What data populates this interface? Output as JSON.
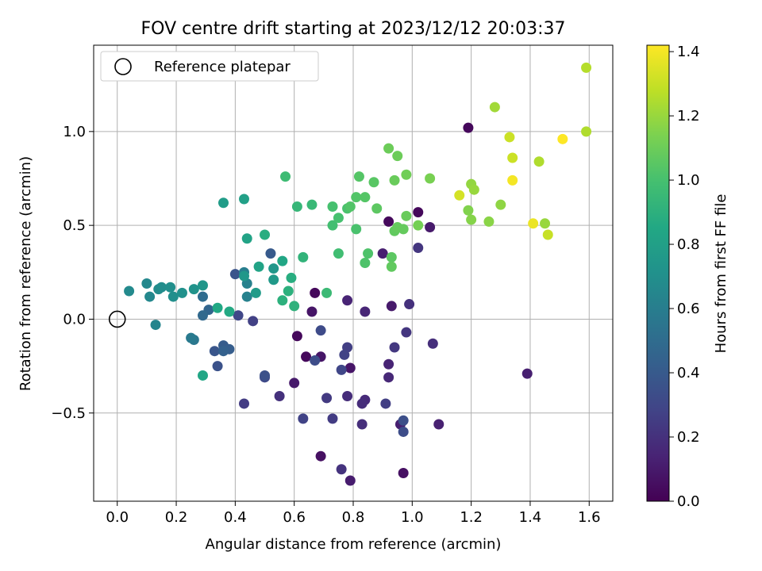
{
  "chart_data": {
    "type": "scatter",
    "title": "FOV centre drift starting at 2023/12/12 20:03:37",
    "xlabel": "Angular distance from reference (arcmin)",
    "ylabel": "Rotation from reference (arcmin)",
    "xlim": [
      -0.08,
      1.68
    ],
    "ylim": [
      -0.97,
      1.46
    ],
    "xticks": [
      0.0,
      0.2,
      0.4,
      0.6,
      0.8,
      1.0,
      1.2,
      1.4,
      1.6
    ],
    "xtick_labels": [
      "0.0",
      "0.2",
      "0.4",
      "0.6",
      "0.8",
      "1.0",
      "1.2",
      "1.4",
      "1.6"
    ],
    "yticks": [
      -0.5,
      0.0,
      0.5,
      1.0
    ],
    "ytick_labels": [
      "−0.5",
      "0.0",
      "0.5",
      "1.0"
    ],
    "grid": true,
    "legend": {
      "placement": "top-left",
      "entries": [
        "Reference platepar"
      ]
    },
    "reference_point": {
      "x": 0.0,
      "y": 0.0
    },
    "colorbar": {
      "label": "Hours from first FF file",
      "range": [
        0.0,
        1.42
      ],
      "ticks": [
        0.0,
        0.2,
        0.4,
        0.6,
        0.8,
        1.0,
        1.2,
        1.4
      ],
      "tick_labels": [
        "0.0",
        "0.2",
        "0.4",
        "0.6",
        "0.8",
        "1.0",
        "1.2",
        "1.4"
      ],
      "colormap": "viridis"
    },
    "points": [
      {
        "x": 1.19,
        "y": 1.02,
        "t": 0.03
      },
      {
        "x": 0.92,
        "y": 0.52,
        "t": 0.03
      },
      {
        "x": 1.02,
        "y": 0.57,
        "t": 0.03
      },
      {
        "x": 0.67,
        "y": 0.14,
        "t": 0.03
      },
      {
        "x": 0.61,
        "y": -0.09,
        "t": 0.03
      },
      {
        "x": 0.64,
        "y": -0.2,
        "t": 0.03
      },
      {
        "x": 0.69,
        "y": -0.73,
        "t": 0.06
      },
      {
        "x": 0.97,
        "y": -0.82,
        "t": 0.06
      },
      {
        "x": 0.69,
        "y": -0.2,
        "t": 0.08
      },
      {
        "x": 0.79,
        "y": -0.26,
        "t": 0.08
      },
      {
        "x": 0.66,
        "y": 0.04,
        "t": 0.08
      },
      {
        "x": 0.6,
        "y": -0.34,
        "t": 0.1
      },
      {
        "x": 0.93,
        "y": 0.07,
        "t": 0.1
      },
      {
        "x": 1.06,
        "y": 0.49,
        "t": 0.1
      },
      {
        "x": 0.79,
        "y": -0.86,
        "t": 0.11
      },
      {
        "x": 0.96,
        "y": -0.56,
        "t": 0.12
      },
      {
        "x": 0.9,
        "y": 0.35,
        "t": 0.12
      },
      {
        "x": 1.39,
        "y": -0.29,
        "t": 0.12
      },
      {
        "x": 1.09,
        "y": -0.56,
        "t": 0.13
      },
      {
        "x": 0.92,
        "y": -0.24,
        "t": 0.14
      },
      {
        "x": 0.78,
        "y": 0.1,
        "t": 0.14
      },
      {
        "x": 0.84,
        "y": 0.04,
        "t": 0.15
      },
      {
        "x": 0.92,
        "y": -0.31,
        "t": 0.16
      },
      {
        "x": 0.84,
        "y": -0.43,
        "t": 0.17
      },
      {
        "x": 0.78,
        "y": -0.41,
        "t": 0.18
      },
      {
        "x": 0.83,
        "y": -0.45,
        "t": 0.18
      },
      {
        "x": 0.83,
        "y": -0.56,
        "t": 0.19
      },
      {
        "x": 1.07,
        "y": -0.13,
        "t": 0.19
      },
      {
        "x": 0.99,
        "y": 0.08,
        "t": 0.2
      },
      {
        "x": 0.55,
        "y": -0.41,
        "t": 0.2
      },
      {
        "x": 0.76,
        "y": -0.8,
        "t": 0.21
      },
      {
        "x": 0.98,
        "y": -0.07,
        "t": 0.22
      },
      {
        "x": 1.02,
        "y": 0.38,
        "t": 0.22
      },
      {
        "x": 0.94,
        "y": -0.15,
        "t": 0.23
      },
      {
        "x": 0.71,
        "y": -0.42,
        "t": 0.24
      },
      {
        "x": 0.73,
        "y": -0.53,
        "t": 0.25
      },
      {
        "x": 0.43,
        "y": -0.45,
        "t": 0.25
      },
      {
        "x": 0.78,
        "y": -0.15,
        "t": 0.26
      },
      {
        "x": 0.91,
        "y": -0.45,
        "t": 0.26
      },
      {
        "x": 0.46,
        "y": -0.01,
        "t": 0.27
      },
      {
        "x": 0.77,
        "y": -0.19,
        "t": 0.28
      },
      {
        "x": 0.63,
        "y": -0.53,
        "t": 0.28
      },
      {
        "x": 0.76,
        "y": -0.27,
        "t": 0.3
      },
      {
        "x": 0.41,
        "y": 0.02,
        "t": 0.3
      },
      {
        "x": 0.5,
        "y": -0.31,
        "t": 0.31
      },
      {
        "x": 0.69,
        "y": -0.06,
        "t": 0.32
      },
      {
        "x": 0.67,
        "y": -0.22,
        "t": 0.33
      },
      {
        "x": 0.97,
        "y": -0.6,
        "t": 0.33
      },
      {
        "x": 0.97,
        "y": -0.54,
        "t": 0.34
      },
      {
        "x": 0.5,
        "y": -0.3,
        "t": 0.35
      },
      {
        "x": 0.34,
        "y": -0.25,
        "t": 0.36
      },
      {
        "x": 0.4,
        "y": 0.24,
        "t": 0.37
      },
      {
        "x": 0.33,
        "y": -0.17,
        "t": 0.38
      },
      {
        "x": 0.52,
        "y": 0.35,
        "t": 0.4
      },
      {
        "x": 0.36,
        "y": -0.14,
        "t": 0.41
      },
      {
        "x": 0.38,
        "y": -0.16,
        "t": 0.42
      },
      {
        "x": 0.36,
        "y": -0.17,
        "t": 0.44
      },
      {
        "x": 0.31,
        "y": 0.05,
        "t": 0.46
      },
      {
        "x": 0.29,
        "y": 0.02,
        "t": 0.48
      },
      {
        "x": 0.29,
        "y": 0.12,
        "t": 0.5
      },
      {
        "x": 0.26,
        "y": -0.11,
        "t": 0.56
      },
      {
        "x": 0.25,
        "y": -0.1,
        "t": 0.58
      },
      {
        "x": 0.43,
        "y": 0.25,
        "t": 0.6
      },
      {
        "x": 0.44,
        "y": 0.19,
        "t": 0.62
      },
      {
        "x": 0.44,
        "y": 0.12,
        "t": 0.62
      },
      {
        "x": 0.13,
        "y": -0.03,
        "t": 0.64
      },
      {
        "x": 0.1,
        "y": 0.19,
        "t": 0.66
      },
      {
        "x": 0.11,
        "y": 0.12,
        "t": 0.66
      },
      {
        "x": 0.04,
        "y": 0.15,
        "t": 0.67
      },
      {
        "x": 0.14,
        "y": 0.16,
        "t": 0.68
      },
      {
        "x": 0.15,
        "y": 0.17,
        "t": 0.69
      },
      {
        "x": 0.18,
        "y": 0.17,
        "t": 0.7
      },
      {
        "x": 0.19,
        "y": 0.12,
        "t": 0.7
      },
      {
        "x": 0.22,
        "y": 0.14,
        "t": 0.71
      },
      {
        "x": 0.26,
        "y": 0.16,
        "t": 0.72
      },
      {
        "x": 0.29,
        "y": 0.18,
        "t": 0.74
      },
      {
        "x": 0.43,
        "y": 0.23,
        "t": 0.75
      },
      {
        "x": 0.53,
        "y": 0.27,
        "t": 0.75
      },
      {
        "x": 0.53,
        "y": 0.21,
        "t": 0.76
      },
      {
        "x": 0.47,
        "y": 0.14,
        "t": 0.77
      },
      {
        "x": 0.36,
        "y": 0.62,
        "t": 0.78
      },
      {
        "x": 0.43,
        "y": 0.64,
        "t": 0.8
      },
      {
        "x": 0.44,
        "y": 0.43,
        "t": 0.82
      },
      {
        "x": 0.48,
        "y": 0.28,
        "t": 0.82
      },
      {
        "x": 0.56,
        "y": 0.31,
        "t": 0.84
      },
      {
        "x": 0.29,
        "y": -0.3,
        "t": 0.84
      },
      {
        "x": 0.34,
        "y": 0.06,
        "t": 0.85
      },
      {
        "x": 0.38,
        "y": 0.04,
        "t": 0.86
      },
      {
        "x": 0.5,
        "y": 0.45,
        "t": 0.88
      },
      {
        "x": 0.59,
        "y": 0.22,
        "t": 0.88
      },
      {
        "x": 0.58,
        "y": 0.15,
        "t": 0.9
      },
      {
        "x": 0.56,
        "y": 0.1,
        "t": 0.9
      },
      {
        "x": 0.6,
        "y": 0.07,
        "t": 0.91
      },
      {
        "x": 0.63,
        "y": 0.33,
        "t": 0.92
      },
      {
        "x": 0.61,
        "y": 0.6,
        "t": 0.94
      },
      {
        "x": 0.66,
        "y": 0.61,
        "t": 0.95
      },
      {
        "x": 0.71,
        "y": 0.14,
        "t": 0.96
      },
      {
        "x": 0.57,
        "y": 0.76,
        "t": 0.97
      },
      {
        "x": 0.75,
        "y": 0.35,
        "t": 0.98
      },
      {
        "x": 0.73,
        "y": 0.5,
        "t": 0.99
      },
      {
        "x": 0.73,
        "y": 0.6,
        "t": 1.0
      },
      {
        "x": 0.75,
        "y": 0.54,
        "t": 1.0
      },
      {
        "x": 0.78,
        "y": 0.59,
        "t": 1.01
      },
      {
        "x": 0.81,
        "y": 0.48,
        "t": 1.01
      },
      {
        "x": 0.84,
        "y": 0.3,
        "t": 1.02
      },
      {
        "x": 0.85,
        "y": 0.35,
        "t": 1.02
      },
      {
        "x": 0.79,
        "y": 0.6,
        "t": 1.03
      },
      {
        "x": 0.81,
        "y": 0.65,
        "t": 1.03
      },
      {
        "x": 0.84,
        "y": 0.65,
        "t": 1.04
      },
      {
        "x": 0.82,
        "y": 0.76,
        "t": 1.04
      },
      {
        "x": 0.87,
        "y": 0.73,
        "t": 1.05
      },
      {
        "x": 0.88,
        "y": 0.59,
        "t": 1.06
      },
      {
        "x": 0.93,
        "y": 0.33,
        "t": 1.06
      },
      {
        "x": 0.93,
        "y": 0.28,
        "t": 1.07
      },
      {
        "x": 0.94,
        "y": 0.47,
        "t": 1.07
      },
      {
        "x": 0.95,
        "y": 0.49,
        "t": 1.08
      },
      {
        "x": 0.97,
        "y": 0.48,
        "t": 1.08
      },
      {
        "x": 0.98,
        "y": 0.55,
        "t": 1.09
      },
      {
        "x": 0.94,
        "y": 0.74,
        "t": 1.09
      },
      {
        "x": 0.92,
        "y": 0.91,
        "t": 1.1
      },
      {
        "x": 0.95,
        "y": 0.87,
        "t": 1.1
      },
      {
        "x": 0.98,
        "y": 0.77,
        "t": 1.11
      },
      {
        "x": 1.02,
        "y": 0.5,
        "t": 1.12
      },
      {
        "x": 1.06,
        "y": 0.75,
        "t": 1.13
      },
      {
        "x": 1.19,
        "y": 0.58,
        "t": 1.15
      },
      {
        "x": 1.2,
        "y": 0.53,
        "t": 1.16
      },
      {
        "x": 1.26,
        "y": 0.52,
        "t": 1.17
      },
      {
        "x": 1.3,
        "y": 0.61,
        "t": 1.18
      },
      {
        "x": 1.2,
        "y": 0.72,
        "t": 1.19
      },
      {
        "x": 1.21,
        "y": 0.69,
        "t": 1.2
      },
      {
        "x": 1.45,
        "y": 0.51,
        "t": 1.2
      },
      {
        "x": 1.28,
        "y": 1.13,
        "t": 1.22
      },
      {
        "x": 1.43,
        "y": 0.84,
        "t": 1.25
      },
      {
        "x": 1.59,
        "y": 1.0,
        "t": 1.25
      },
      {
        "x": 1.59,
        "y": 1.34,
        "t": 1.26
      },
      {
        "x": 1.46,
        "y": 0.45,
        "t": 1.3
      },
      {
        "x": 1.33,
        "y": 0.97,
        "t": 1.31
      },
      {
        "x": 1.34,
        "y": 0.86,
        "t": 1.31
      },
      {
        "x": 1.16,
        "y": 0.66,
        "t": 1.33
      },
      {
        "x": 1.41,
        "y": 0.51,
        "t": 1.38
      },
      {
        "x": 1.34,
        "y": 0.74,
        "t": 1.4
      },
      {
        "x": 1.51,
        "y": 0.96,
        "t": 1.42
      }
    ]
  }
}
